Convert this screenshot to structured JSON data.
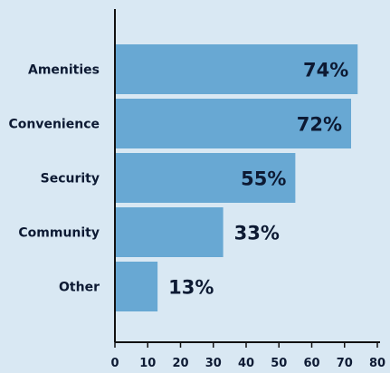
{
  "chart_data": {
    "type": "bar",
    "orientation": "horizontal",
    "categories": [
      "Amenities",
      "Convenience",
      "Security",
      "Community",
      "Other"
    ],
    "values": [
      74,
      72,
      55,
      33,
      13
    ],
    "value_labels": [
      "74%",
      "72%",
      "55%",
      "33%",
      "13%"
    ],
    "xlim": [
      0,
      80
    ],
    "xticks": [
      "0",
      "10",
      "20",
      "30",
      "40",
      "50",
      "60",
      "70",
      "80"
    ],
    "grid": false,
    "colors": {
      "background": "#d9e8f3",
      "bar": "#68a8d3",
      "axis": "#111111",
      "text": "#0d1a33"
    }
  }
}
